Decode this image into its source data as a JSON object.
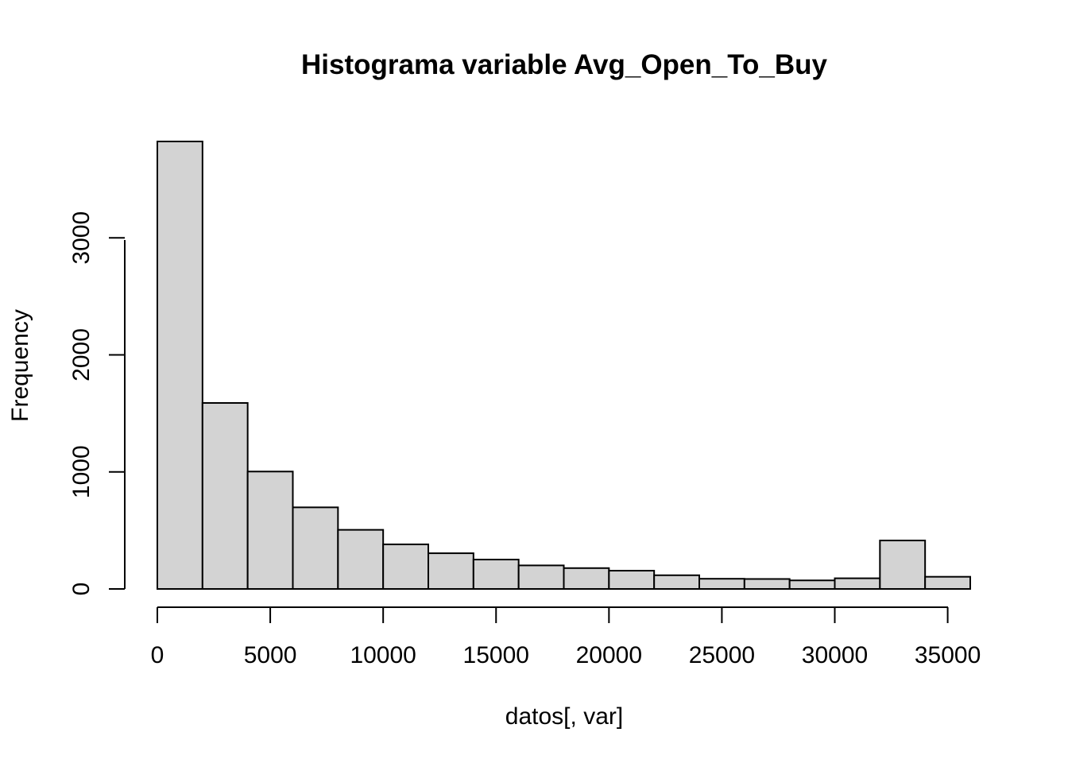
{
  "chart_data": {
    "type": "bar",
    "title": "Histograma variable Avg_Open_To_Buy",
    "xlabel": "datos[, var]",
    "ylabel": "Frequency",
    "bin_edges": [
      0,
      2000,
      4000,
      6000,
      8000,
      10000,
      12000,
      14000,
      16000,
      18000,
      20000,
      22000,
      24000,
      26000,
      28000,
      30000,
      32000,
      34000,
      36000
    ],
    "values": [
      3823,
      1589,
      1003,
      697,
      505,
      381,
      305,
      251,
      201,
      178,
      156,
      117,
      87,
      85,
      73,
      91,
      414,
      104
    ],
    "xlim": [
      0,
      36000
    ],
    "ylim": [
      0,
      3823
    ],
    "x_ticks": [
      0,
      5000,
      10000,
      15000,
      20000,
      25000,
      30000,
      35000
    ],
    "x_tick_labels": [
      "0",
      "5000",
      "10000",
      "15000",
      "20000",
      "25000",
      "30000",
      "35000"
    ],
    "y_ticks": [
      0,
      1000,
      2000,
      3000
    ],
    "y_tick_labels": [
      "0",
      "1000",
      "2000",
      "3000"
    ],
    "grid": false,
    "colors": {
      "bar_fill": "#d3d3d3",
      "bar_stroke": "#000000",
      "axis": "#000000",
      "background": "#ffffff"
    }
  }
}
